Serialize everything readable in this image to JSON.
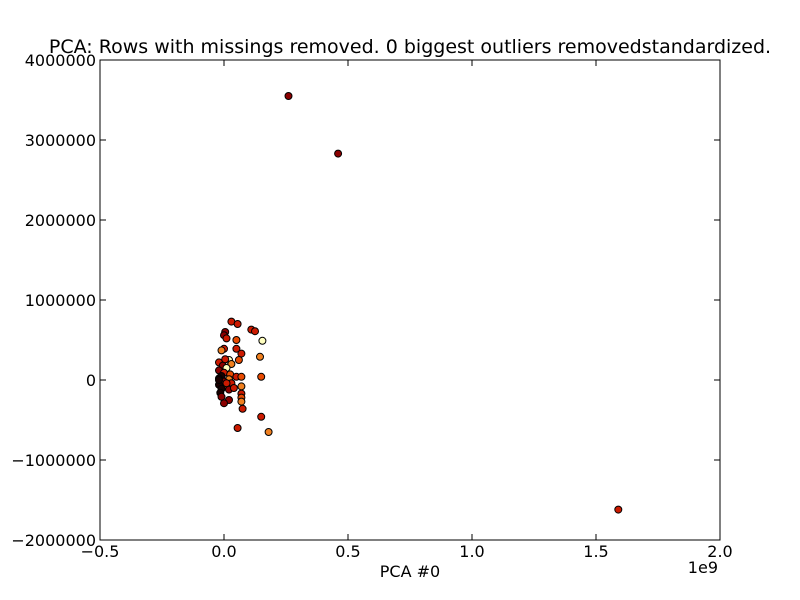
{
  "chart_data": {
    "type": "scatter",
    "title": "PCA: Rows with missings removed. 0 biggest outliers removedstandardized.",
    "xlabel": "PCA #0",
    "ylabel": "",
    "x_offset_label": "1e9",
    "xlim": [
      -0.5,
      2.0
    ],
    "ylim": [
      -2000000,
      4000000
    ],
    "x_ticks": [
      -0.5,
      0.0,
      0.5,
      1.0,
      1.5,
      2.0
    ],
    "x_tick_labels": [
      "−0.5",
      "0.0",
      "0.5",
      "1.0",
      "1.5",
      "2.0"
    ],
    "y_ticks": [
      -2000000,
      -1000000,
      0,
      1000000,
      2000000,
      3000000,
      4000000
    ],
    "y_tick_labels": [
      "−2000000",
      "−1000000",
      "0",
      "1000000",
      "2000000",
      "3000000",
      "4000000"
    ],
    "grid": false,
    "colors": {
      "dark_red": "#8b0000",
      "red": "#cc1a00",
      "orange_red": "#e84a00",
      "orange": "#f08020",
      "light_yellow": "#ffffc0",
      "black": "#1a0000"
    },
    "points": [
      {
        "x": 0.26,
        "y": 3550000,
        "c": "dark_red"
      },
      {
        "x": 0.46,
        "y": 2830000,
        "c": "dark_red"
      },
      {
        "x": 1.59,
        "y": -1620000,
        "c": "red"
      },
      {
        "x": 0.03,
        "y": 730000,
        "c": "red"
      },
      {
        "x": 0.055,
        "y": 700000,
        "c": "red"
      },
      {
        "x": 0.11,
        "y": 630000,
        "c": "red"
      },
      {
        "x": 0.125,
        "y": 610000,
        "c": "red"
      },
      {
        "x": 0.005,
        "y": 600000,
        "c": "dark_red"
      },
      {
        "x": 0.0,
        "y": 560000,
        "c": "dark_red"
      },
      {
        "x": 0.01,
        "y": 520000,
        "c": "red"
      },
      {
        "x": 0.05,
        "y": 500000,
        "c": "orange_red"
      },
      {
        "x": 0.155,
        "y": 490000,
        "c": "light_yellow"
      },
      {
        "x": 0.0,
        "y": 390000,
        "c": "red"
      },
      {
        "x": 0.05,
        "y": 390000,
        "c": "red"
      },
      {
        "x": -0.01,
        "y": 370000,
        "c": "orange"
      },
      {
        "x": 0.07,
        "y": 330000,
        "c": "red"
      },
      {
        "x": 0.145,
        "y": 290000,
        "c": "orange"
      },
      {
        "x": 0.06,
        "y": 250000,
        "c": "orange_red"
      },
      {
        "x": 0.02,
        "y": 250000,
        "c": "light_yellow"
      },
      {
        "x": -0.02,
        "y": 220000,
        "c": "red"
      },
      {
        "x": 0.03,
        "y": 200000,
        "c": "orange"
      },
      {
        "x": -0.005,
        "y": 180000,
        "c": "dark_red"
      },
      {
        "x": 0.01,
        "y": 150000,
        "c": "light_yellow"
      },
      {
        "x": -0.02,
        "y": 120000,
        "c": "dark_red"
      },
      {
        "x": 0.0,
        "y": 90000,
        "c": "red"
      },
      {
        "x": 0.025,
        "y": 70000,
        "c": "orange_red"
      },
      {
        "x": -0.01,
        "y": 50000,
        "c": "black"
      },
      {
        "x": 0.05,
        "y": 40000,
        "c": "red"
      },
      {
        "x": 0.07,
        "y": 40000,
        "c": "orange_red"
      },
      {
        "x": 0.15,
        "y": 40000,
        "c": "orange_red"
      },
      {
        "x": -0.02,
        "y": 20000,
        "c": "black"
      },
      {
        "x": 0.02,
        "y": 10000,
        "c": "orange"
      },
      {
        "x": -0.015,
        "y": -10000,
        "c": "black"
      },
      {
        "x": 0.0,
        "y": -20000,
        "c": "dark_red"
      },
      {
        "x": 0.03,
        "y": -40000,
        "c": "red"
      },
      {
        "x": -0.02,
        "y": -60000,
        "c": "black"
      },
      {
        "x": 0.01,
        "y": -80000,
        "c": "orange_red"
      },
      {
        "x": 0.07,
        "y": -80000,
        "c": "orange"
      },
      {
        "x": -0.01,
        "y": -110000,
        "c": "black"
      },
      {
        "x": 0.02,
        "y": -120000,
        "c": "dark_red"
      },
      {
        "x": 0.07,
        "y": -170000,
        "c": "red"
      },
      {
        "x": -0.015,
        "y": -160000,
        "c": "black"
      },
      {
        "x": 0.07,
        "y": -220000,
        "c": "orange_red"
      },
      {
        "x": -0.01,
        "y": -210000,
        "c": "dark_red"
      },
      {
        "x": 0.02,
        "y": -250000,
        "c": "dark_red"
      },
      {
        "x": 0.07,
        "y": -270000,
        "c": "orange"
      },
      {
        "x": 0.0,
        "y": -290000,
        "c": "dark_red"
      },
      {
        "x": 0.075,
        "y": -360000,
        "c": "red"
      },
      {
        "x": 0.15,
        "y": -460000,
        "c": "red"
      },
      {
        "x": 0.055,
        "y": -600000,
        "c": "red"
      },
      {
        "x": 0.18,
        "y": -650000,
        "c": "orange"
      },
      {
        "x": -0.02,
        "y": 0,
        "c": "black"
      },
      {
        "x": 0.01,
        "y": -40000,
        "c": "red"
      },
      {
        "x": 0.04,
        "y": -100000,
        "c": "red"
      },
      {
        "x": 0.005,
        "y": 260000,
        "c": "red"
      }
    ]
  }
}
